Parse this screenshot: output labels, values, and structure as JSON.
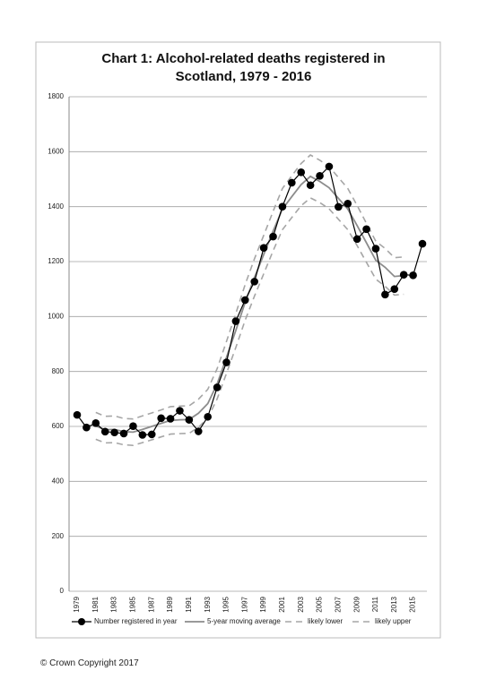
{
  "chart_data": {
    "type": "line",
    "title": "Chart 1: Alcohol-related deaths registered in Scotland, 1979 - 2016",
    "categories": [
      "1979",
      null,
      "1981",
      null,
      "1983",
      null,
      "1985",
      null,
      "1987",
      null,
      "1989",
      null,
      "1991",
      null,
      "1993",
      null,
      "1995",
      null,
      "1997",
      null,
      "1999",
      null,
      "2001",
      null,
      "2003",
      null,
      "2005",
      null,
      "2007",
      null,
      "2009",
      null,
      "2011",
      null,
      "2013",
      null,
      "2015",
      null
    ],
    "series": [
      {
        "name": "Number registered in year",
        "color": "#000000",
        "style": "marker",
        "values": [
          642,
          596,
          612,
          581,
          578,
          574,
          601,
          569,
          571,
          630,
          628,
          657,
          624,
          582,
          635,
          742,
          833,
          983,
          1060,
          1127,
          1250,
          1291,
          1400,
          1487,
          1525,
          1478,
          1512,
          1546,
          1399,
          1411,
          1282,
          1318,
          1247,
          1080,
          1100,
          1152,
          1150,
          1265
        ]
      },
      {
        "name": "5-year moving average",
        "color": "#8c8c8c",
        "style": "solid",
        "values": [
          null,
          null,
          602,
          588,
          589,
          581,
          579,
          589,
          600,
          611,
          622,
          624,
          625,
          648,
          683,
          755,
          851,
          949,
          1051,
          1142,
          1226,
          1311,
          1391,
          1436,
          1480,
          1510,
          1492,
          1469,
          1430,
          1391,
          1331,
          1268,
          1205,
          1179,
          1146,
          1149,
          null,
          null
        ]
      },
      {
        "name": "likely lower",
        "color": "#a6a6a6",
        "style": "dashed",
        "values": [
          null,
          null,
          553,
          540,
          541,
          533,
          531,
          541,
          551,
          562,
          572,
          574,
          575,
          597,
          631,
          700,
          793,
          887,
          986,
          1074,
          1156,
          1239,
          1316,
          1360,
          1403,
          1432,
          1415,
          1392,
          1354,
          1316,
          1258,
          1197,
          1136,
          1110,
          1078,
          1081,
          null,
          null
        ]
      },
      {
        "name": "likely upper",
        "color": "#a6a6a6",
        "style": "dashed",
        "values": [
          null,
          null,
          651,
          637,
          638,
          629,
          627,
          638,
          649,
          660,
          672,
          674,
          675,
          699,
          735,
          810,
          909,
          1011,
          1116,
          1210,
          1296,
          1383,
          1466,
          1512,
          1557,
          1588,
          1569,
          1546,
          1506,
          1466,
          1404,
          1339,
          1274,
          1248,
          1214,
          1217,
          null,
          null
        ]
      }
    ],
    "ylim": [
      0,
      1800
    ],
    "yticks": [
      0,
      200,
      400,
      600,
      800,
      1000,
      1200,
      1400,
      1600,
      1800
    ],
    "grid": true,
    "legend": "bottom"
  },
  "footer": "© Crown Copyright 2017"
}
